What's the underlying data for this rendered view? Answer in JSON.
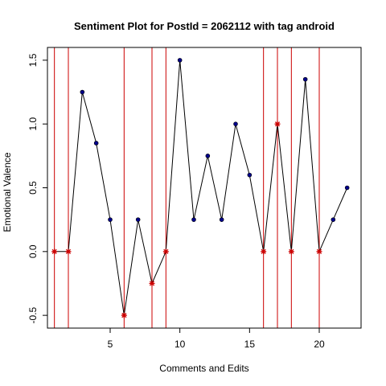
{
  "chart_data": {
    "type": "line",
    "title": "Sentiment Plot for PostId =  2062112  with tag  android",
    "xlabel": "Comments and Edits",
    "ylabel": "Emotional Valence",
    "xlim": [
      0.5,
      23
    ],
    "ylim": [
      -0.6,
      1.6
    ],
    "xticks": [
      5,
      10,
      15,
      20
    ],
    "yticks": [
      -0.5,
      0.0,
      0.5,
      1.0,
      1.5
    ],
    "ytick_labels": [
      "-0.5",
      "0.0",
      "0.5",
      "1.0",
      "1.5"
    ],
    "line_color": "#000000",
    "point_color": "#00008b",
    "edit_marker_color": "#cc0000",
    "vline_color": "#cc0000",
    "points": [
      {
        "x": 1,
        "y": 0.0,
        "edit": true
      },
      {
        "x": 2,
        "y": 0.0,
        "edit": true
      },
      {
        "x": 3,
        "y": 1.25,
        "edit": false
      },
      {
        "x": 4,
        "y": 0.85,
        "edit": false
      },
      {
        "x": 5,
        "y": 0.25,
        "edit": false
      },
      {
        "x": 6,
        "y": -0.5,
        "edit": true
      },
      {
        "x": 7,
        "y": 0.25,
        "edit": false
      },
      {
        "x": 8,
        "y": -0.25,
        "edit": true
      },
      {
        "x": 9,
        "y": 0.0,
        "edit": true
      },
      {
        "x": 10,
        "y": 1.5,
        "edit": false
      },
      {
        "x": 11,
        "y": 0.25,
        "edit": false
      },
      {
        "x": 12,
        "y": 0.75,
        "edit": false
      },
      {
        "x": 13,
        "y": 0.25,
        "edit": false
      },
      {
        "x": 14,
        "y": 1.0,
        "edit": false
      },
      {
        "x": 15,
        "y": 0.6,
        "edit": false
      },
      {
        "x": 16,
        "y": 0.0,
        "edit": true
      },
      {
        "x": 17,
        "y": 1.0,
        "edit": true
      },
      {
        "x": 18,
        "y": 0.0,
        "edit": true
      },
      {
        "x": 19,
        "y": 1.35,
        "edit": false
      },
      {
        "x": 20,
        "y": 0.0,
        "edit": true
      },
      {
        "x": 21,
        "y": 0.25,
        "edit": false
      },
      {
        "x": 22,
        "y": 0.5,
        "edit": false
      }
    ],
    "vlines": [
      1,
      2,
      6,
      8,
      9,
      16,
      17,
      18,
      20
    ]
  }
}
